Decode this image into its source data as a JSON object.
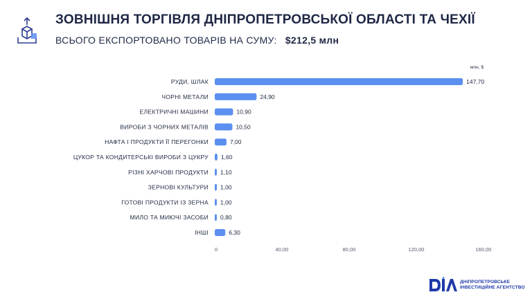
{
  "header": {
    "title": "ЗОВНІШНЯ ТОРГІВЛЯ ДНІПРОПЕТРОВСЬКОЇ ОБЛАСТІ ТА ЧЕХІЇ",
    "subtitle": "ВСЬОГО ЕКСПОРТОВАНО ТОВАРІВ НА СУМУ:",
    "total": "$212,5 млн",
    "icon": "export-box-icon"
  },
  "chart_data": {
    "type": "bar",
    "orientation": "horizontal",
    "unit": "млн, $",
    "categories": [
      "РУДИ, ШЛАК",
      "ЧОРНІ МЕТАЛИ",
      "ЕЛЕКТРИЧНІ МАШИНИ",
      "ВИРОБИ З ЧОРНИХ МЕТАЛІВ",
      "НАФТА І ПРОДУКТИ ЇЇ ПЕРЕГОНКИ",
      "ЦУКОР ТА КОНДИТЕРСЬКІ ВИРОБИ З ЦУКРУ",
      "РІЗНІ ХАРЧОВІ ПРОДУКТИ",
      "ЗЕРНОВІ КУЛЬТУРИ",
      "ГОТОВІ ПРОДУКТИ ІЗ ЗЕРНА",
      "МИЛО ТА МИЮЧІ ЗАСОБИ",
      "ІНШІ"
    ],
    "values": [
      147.7,
      24.9,
      10.9,
      10.5,
      7.0,
      1.6,
      1.1,
      1.0,
      1.0,
      0.8,
      6.3
    ],
    "value_labels": [
      "147,70",
      "24,90",
      "10,90",
      "10,50",
      "7,00",
      "1,60",
      "1,10",
      "1,00",
      "1,00",
      "0,80",
      "6,30"
    ],
    "xlim": [
      0,
      160
    ],
    "ticks": [
      0,
      40,
      80,
      120,
      160
    ],
    "tick_labels": [
      "0",
      "40,00",
      "80,00",
      "120,00",
      "160,00"
    ],
    "bar_color": "#5b8ff0",
    "grid": false
  },
  "brand": {
    "logo": "dia-logo-icon",
    "line1": "ДНІПРОПЕТРОВСЬКЕ",
    "line2": "ІНВЕСТИЦІЙНЕ АГЕНТСТВО",
    "color": "#1f3aa8"
  }
}
